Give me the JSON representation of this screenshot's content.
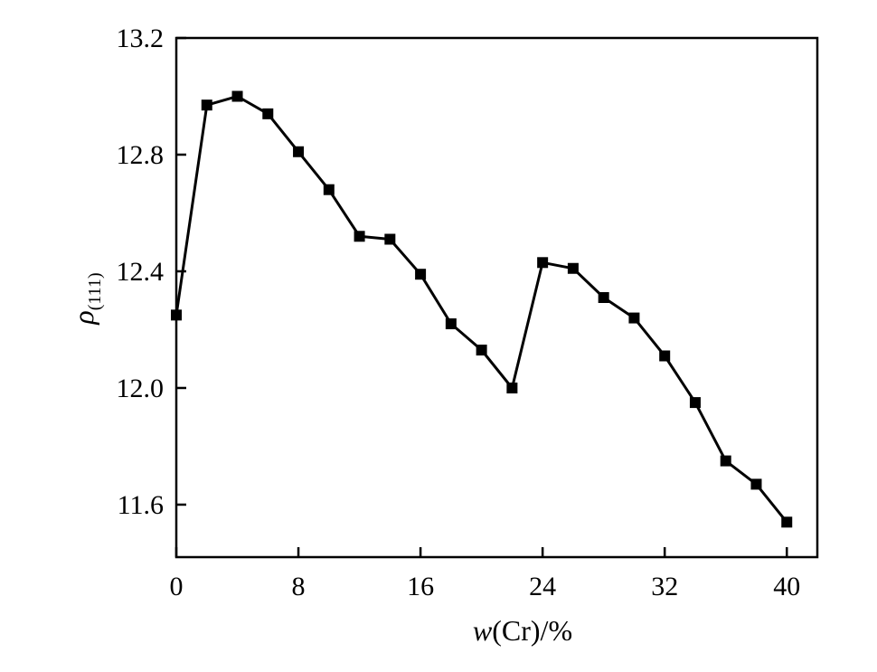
{
  "chart_data": {
    "type": "line",
    "title": "",
    "xlabel": {
      "italic": "w",
      "rest": "(Cr)/%"
    },
    "ylabel": {
      "symbol": "ρ",
      "subscript": "(111)"
    },
    "xlim": [
      0,
      42
    ],
    "ylim": [
      11.42,
      13.2
    ],
    "xticks": [
      0,
      8,
      16,
      24,
      32,
      40
    ],
    "xtick_labels": [
      "0",
      "8",
      "16",
      "24",
      "32",
      "40"
    ],
    "yticks": [
      11.6,
      12.0,
      12.4,
      12.8,
      13.2
    ],
    "ytick_labels": [
      "11.6",
      "12.0",
      "12.4",
      "12.8",
      "13.2"
    ],
    "grid": false,
    "marker": "square",
    "line_color": "#000000",
    "series": [
      {
        "x": [
          0,
          2,
          4,
          6,
          8,
          10,
          12,
          14,
          16,
          18,
          20,
          22,
          24,
          26,
          28,
          30,
          32,
          34,
          36,
          38,
          40
        ],
        "y": [
          12.25,
          12.97,
          13.0,
          12.94,
          12.81,
          12.68,
          12.52,
          12.51,
          12.39,
          12.22,
          12.13,
          12.0,
          12.43,
          12.41,
          12.31,
          12.24,
          12.11,
          11.95,
          11.75,
          11.67,
          11.54
        ]
      }
    ]
  }
}
